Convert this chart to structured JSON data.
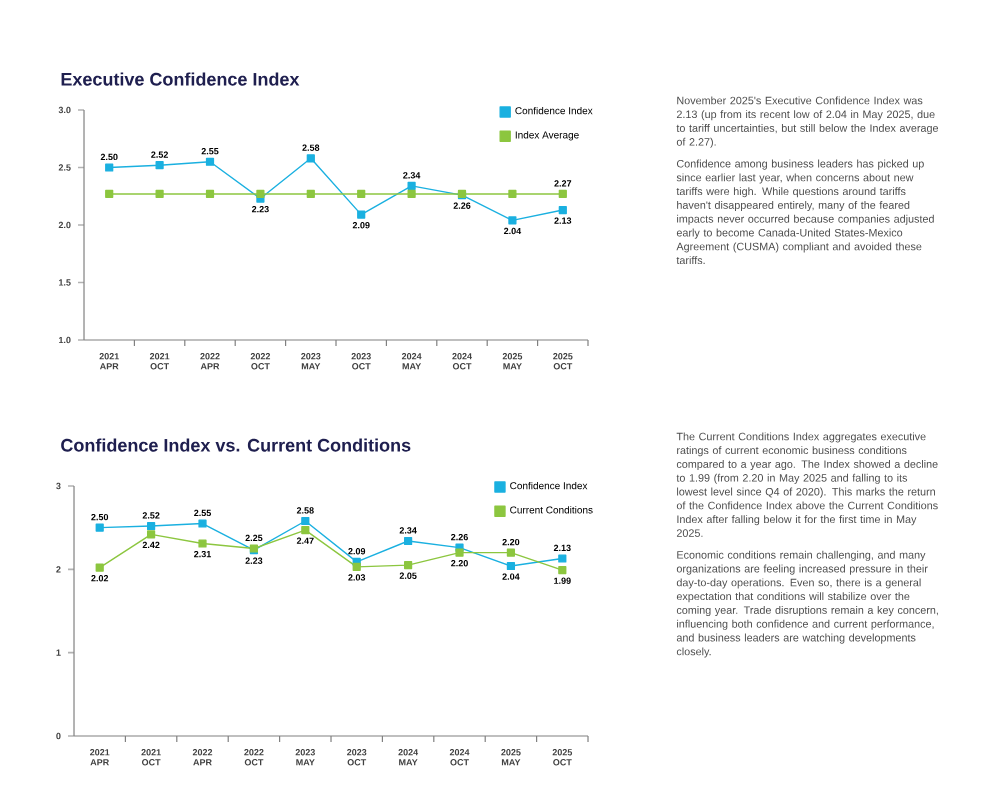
{
  "chart_data": [
    {
      "type": "line",
      "title": "Executive Confidence Index",
      "categories": [
        "2021 APR",
        "2021 OCT",
        "2022 APR",
        "2022 OCT",
        "2023 MAY",
        "2023 OCT",
        "2024 MAY",
        "2024 OCT",
        "2025 MAY",
        "2025 OCT"
      ],
      "series": [
        {
          "name": "Confidence Index",
          "color": "#1ab0e0",
          "values": [
            2.5,
            2.52,
            2.55,
            2.23,
            2.58,
            2.09,
            2.34,
            2.26,
            2.04,
            2.13
          ],
          "value_labels": [
            "2.50",
            "2.52",
            "2.55",
            "2.23",
            "2.58",
            "2.09",
            "2.34",
            "2.26",
            "2.04",
            "2.13"
          ]
        },
        {
          "name": "Index Average",
          "color": "#8cc63f",
          "values": [
            2.27,
            2.27,
            2.27,
            2.27,
            2.27,
            2.27,
            2.27,
            2.27,
            2.27,
            2.27
          ],
          "value_labels": [
            null,
            null,
            null,
            null,
            null,
            null,
            null,
            null,
            null,
            "2.27"
          ]
        }
      ],
      "ylim": [
        1.0,
        3.0
      ],
      "yticks": [
        {
          "value": 1.0,
          "label": "1.0"
        },
        1.5,
        {
          "value": 2.0,
          "label": "2.0"
        },
        2.5,
        {
          "value": 3.0,
          "label": "3.0"
        }
      ],
      "legend": "top right",
      "marker": "square",
      "annotations": [
        "November 2025's Executive Confidence Index was 2.13 (up from its recent low of 2.04 in May 2025, due to tariff uncertainties, but still below the Index average of 2.27).",
        "Confidence among business leaders has picked up since earlier last year, when concerns about new tariffs were high. While questions around tariffs haven't disappeared entirely, many of the feared impacts never occurred because companies adjusted early to become Canada-United States-Mexico Agreement (CUSMA) compliant and avoided these tariffs."
      ]
    },
    {
      "type": "line",
      "title": "Confidence Index vs. Current Conditions",
      "categories": [
        "2021 APR",
        "2021 OCT",
        "2022 APR",
        "2022 OCT",
        "2023 MAY",
        "2023 OCT",
        "2024 MAY",
        "2024 OCT",
        "2025 MAY",
        "2025 OCT"
      ],
      "series": [
        {
          "name": "Confidence Index",
          "color": "#1ab0e0",
          "values": [
            2.5,
            2.52,
            2.55,
            2.23,
            2.58,
            2.09,
            2.34,
            2.26,
            2.04,
            2.13
          ],
          "value_labels": [
            "2.50",
            "2.52",
            "2.55",
            "2.23",
            "2.58",
            "2.09",
            "2.34",
            "2.26",
            "2.04",
            "2.13"
          ]
        },
        {
          "name": "Current Conditions",
          "color": "#8cc63f",
          "values": [
            2.02,
            2.42,
            2.31,
            2.25,
            2.47,
            2.03,
            2.05,
            2.2,
            2.2,
            1.99
          ],
          "value_labels": [
            "2.02",
            "2.42",
            "2.31",
            "2.25",
            "2.47",
            "2.03",
            "2.05",
            "2.20",
            "2.20",
            "1.99"
          ]
        }
      ],
      "ylim": [
        0,
        3
      ],
      "yticks": [
        0,
        1,
        2,
        3
      ],
      "legend": "top right",
      "marker": "square",
      "annotations": [
        "The Current Conditions Index aggregates executive ratings of current economic business conditions compared to a year ago. The Index showed a decline to 1.99 (from 2.20 in May 2025 and falling to its lowest level since Q4 of 2020). This marks the return of the Confidence Index above the Current Conditions Index after falling below it for the first time in May 2025.",
        "Economic conditions remain challenging, and many organizations are feeling increased pressure in their day-to-day operations. Even so, there is a general expectation that conditions will stabilize over the coming year. Trade disruptions remain a key concern, influencing both confidence and current performance, and business leaders are watching developments closely."
      ]
    }
  ]
}
